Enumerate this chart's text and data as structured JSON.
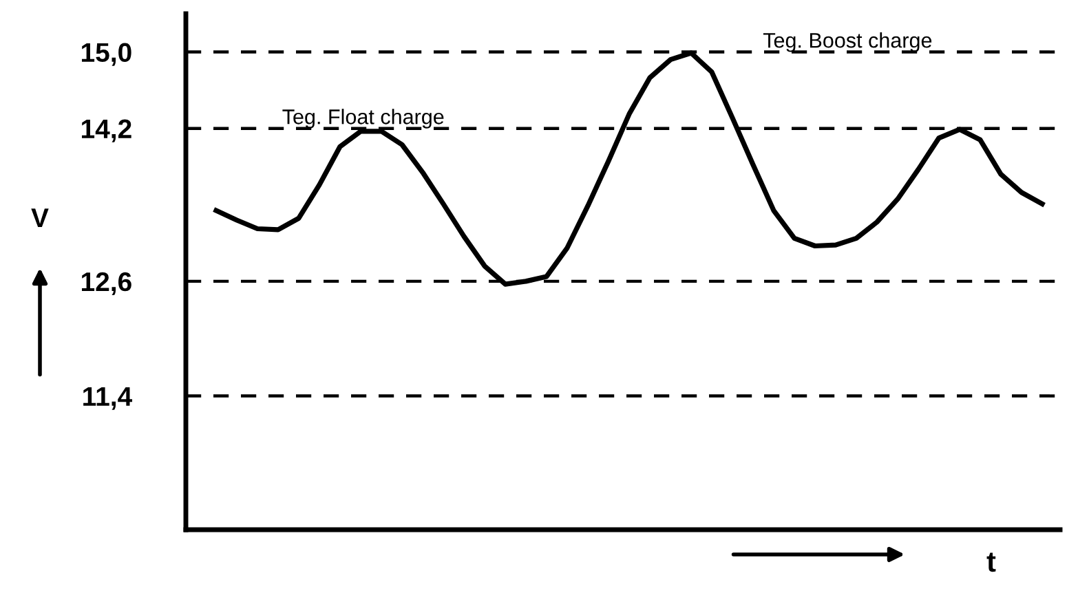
{
  "chart_data": {
    "type": "line",
    "xlabel": "t",
    "ylabel": "V",
    "categories": [
      null,
      null,
      null,
      null,
      null,
      null,
      null,
      null,
      null,
      null,
      null,
      null,
      null,
      null,
      null,
      null,
      null,
      null,
      null,
      null,
      null,
      null,
      null,
      null,
      null,
      null,
      null,
      null,
      null,
      null,
      null,
      null,
      null,
      null,
      null,
      null,
      null,
      null,
      null,
      null,
      null
    ],
    "series": [
      {
        "color": "#000000",
        "values": [
          13.34,
          13.24,
          13.15,
          13.14,
          13.26,
          13.61,
          14.01,
          14.17,
          14.17,
          14.03,
          13.74,
          13.41,
          13.07,
          12.76,
          12.57,
          12.6,
          12.65,
          12.95,
          13.39,
          13.86,
          14.35,
          14.73,
          14.92,
          14.99,
          14.79,
          14.31,
          13.82,
          13.34,
          13.05,
          12.97,
          12.98,
          13.05,
          13.22,
          13.46,
          13.77,
          14.1,
          14.19,
          14.08,
          13.72,
          13.53,
          13.41
        ]
      }
    ],
    "ylim": [
      10.0,
      15.4
    ],
    "yticks": [
      {
        "value": 11.4,
        "label": "11,4"
      },
      {
        "value": 12.6,
        "label": "12,6"
      },
      {
        "value": 14.2,
        "label": "14,2"
      },
      {
        "value": 15.0,
        "label": "15,0"
      }
    ],
    "ref_lines": [
      {
        "axis": "y",
        "value": 15.0,
        "label": "Teg. Boost charge",
        "color": "#000000",
        "line_style": "dashed"
      },
      {
        "axis": "y",
        "value": 14.2,
        "label": "Teg. Float charge",
        "color": "#000000",
        "line_style": "dashed"
      },
      {
        "axis": "y",
        "value": 12.6,
        "color": "#000000",
        "line_style": "dashed"
      },
      {
        "axis": "y",
        "value": 11.4,
        "color": "#000000",
        "line_style": "dashed"
      }
    ],
    "tick_labels": "y",
    "grid": false,
    "marker": "none",
    "line_style": "solid"
  }
}
